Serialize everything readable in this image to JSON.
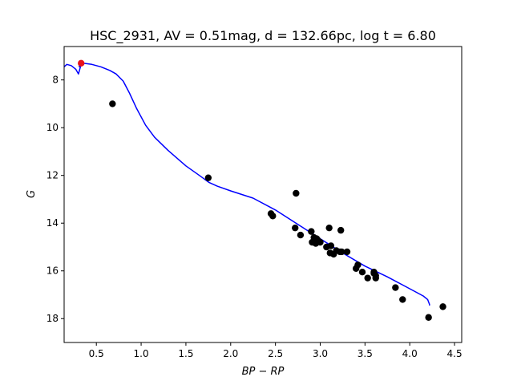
{
  "chart_data": {
    "type": "scatter",
    "title": "HSC_2931, AV = 0.51mag, d = 132.66pc, log t = 6.80",
    "xlabel": "BP − RP",
    "ylabel": "G",
    "xlim": [
      0.14,
      4.58
    ],
    "ylim": [
      19.0,
      6.6
    ],
    "y_inverted": true,
    "x_ticks": [
      0.5,
      1.0,
      1.5,
      2.0,
      2.5,
      3.0,
      3.5,
      4.0,
      4.5
    ],
    "x_tick_labels": [
      "0.5",
      "1.0",
      "1.5",
      "2.0",
      "2.5",
      "3.0",
      "3.5",
      "4.0",
      "4.5"
    ],
    "y_ticks": [
      8,
      10,
      12,
      14,
      16,
      18
    ],
    "y_tick_labels": [
      "8",
      "10",
      "12",
      "14",
      "16",
      "18"
    ],
    "grid": false,
    "colors": {
      "members": "#000000",
      "highlight": "#e8111b",
      "isochrone": "#0000ff"
    },
    "series": [
      {
        "name": "members",
        "x": [
          0.68,
          1.75,
          2.45,
          2.47,
          2.73,
          2.72,
          2.78,
          2.9,
          2.91,
          2.93,
          2.95,
          2.97,
          3.0,
          2.96,
          3.07,
          3.1,
          3.12,
          3.11,
          3.15,
          3.18,
          3.22,
          3.23,
          3.24,
          3.3,
          3.4,
          3.42,
          3.47,
          3.53,
          3.6,
          3.6,
          3.62,
          3.62,
          3.84,
          3.92,
          4.21,
          4.37
        ],
        "y": [
          9.0,
          12.1,
          13.6,
          13.7,
          12.75,
          14.2,
          14.5,
          14.35,
          14.8,
          14.6,
          14.85,
          14.7,
          14.8,
          14.65,
          15.0,
          14.2,
          14.95,
          15.25,
          15.3,
          15.15,
          15.2,
          14.3,
          15.2,
          15.2,
          15.9,
          15.75,
          16.05,
          16.3,
          16.05,
          16.1,
          16.2,
          16.3,
          16.7,
          17.2,
          17.95,
          17.5
        ]
      },
      {
        "name": "highlight",
        "x": [
          0.33
        ],
        "y": [
          7.3
        ]
      },
      {
        "name": "isochrone",
        "type": "line",
        "x": [
          0.14,
          0.17,
          0.22,
          0.27,
          0.3,
          0.33,
          0.31,
          0.31,
          0.35,
          0.45,
          0.55,
          0.65,
          0.72,
          0.8,
          0.87,
          0.95,
          1.05,
          1.15,
          1.3,
          1.5,
          1.65,
          1.76,
          1.85,
          2.0,
          2.25,
          2.5,
          2.75,
          3.0,
          3.25,
          3.5,
          3.75,
          4.0,
          4.1,
          4.15,
          4.2,
          4.22,
          4.22
        ],
        "y": [
          7.45,
          7.35,
          7.4,
          7.55,
          7.75,
          7.35,
          7.45,
          7.35,
          7.3,
          7.35,
          7.45,
          7.6,
          7.75,
          8.05,
          8.55,
          9.2,
          9.9,
          10.4,
          10.95,
          11.6,
          12.0,
          12.3,
          12.45,
          12.65,
          12.95,
          13.45,
          14.05,
          14.65,
          15.25,
          15.8,
          16.25,
          16.75,
          16.95,
          17.05,
          17.2,
          17.4,
          17.45
        ]
      }
    ]
  }
}
